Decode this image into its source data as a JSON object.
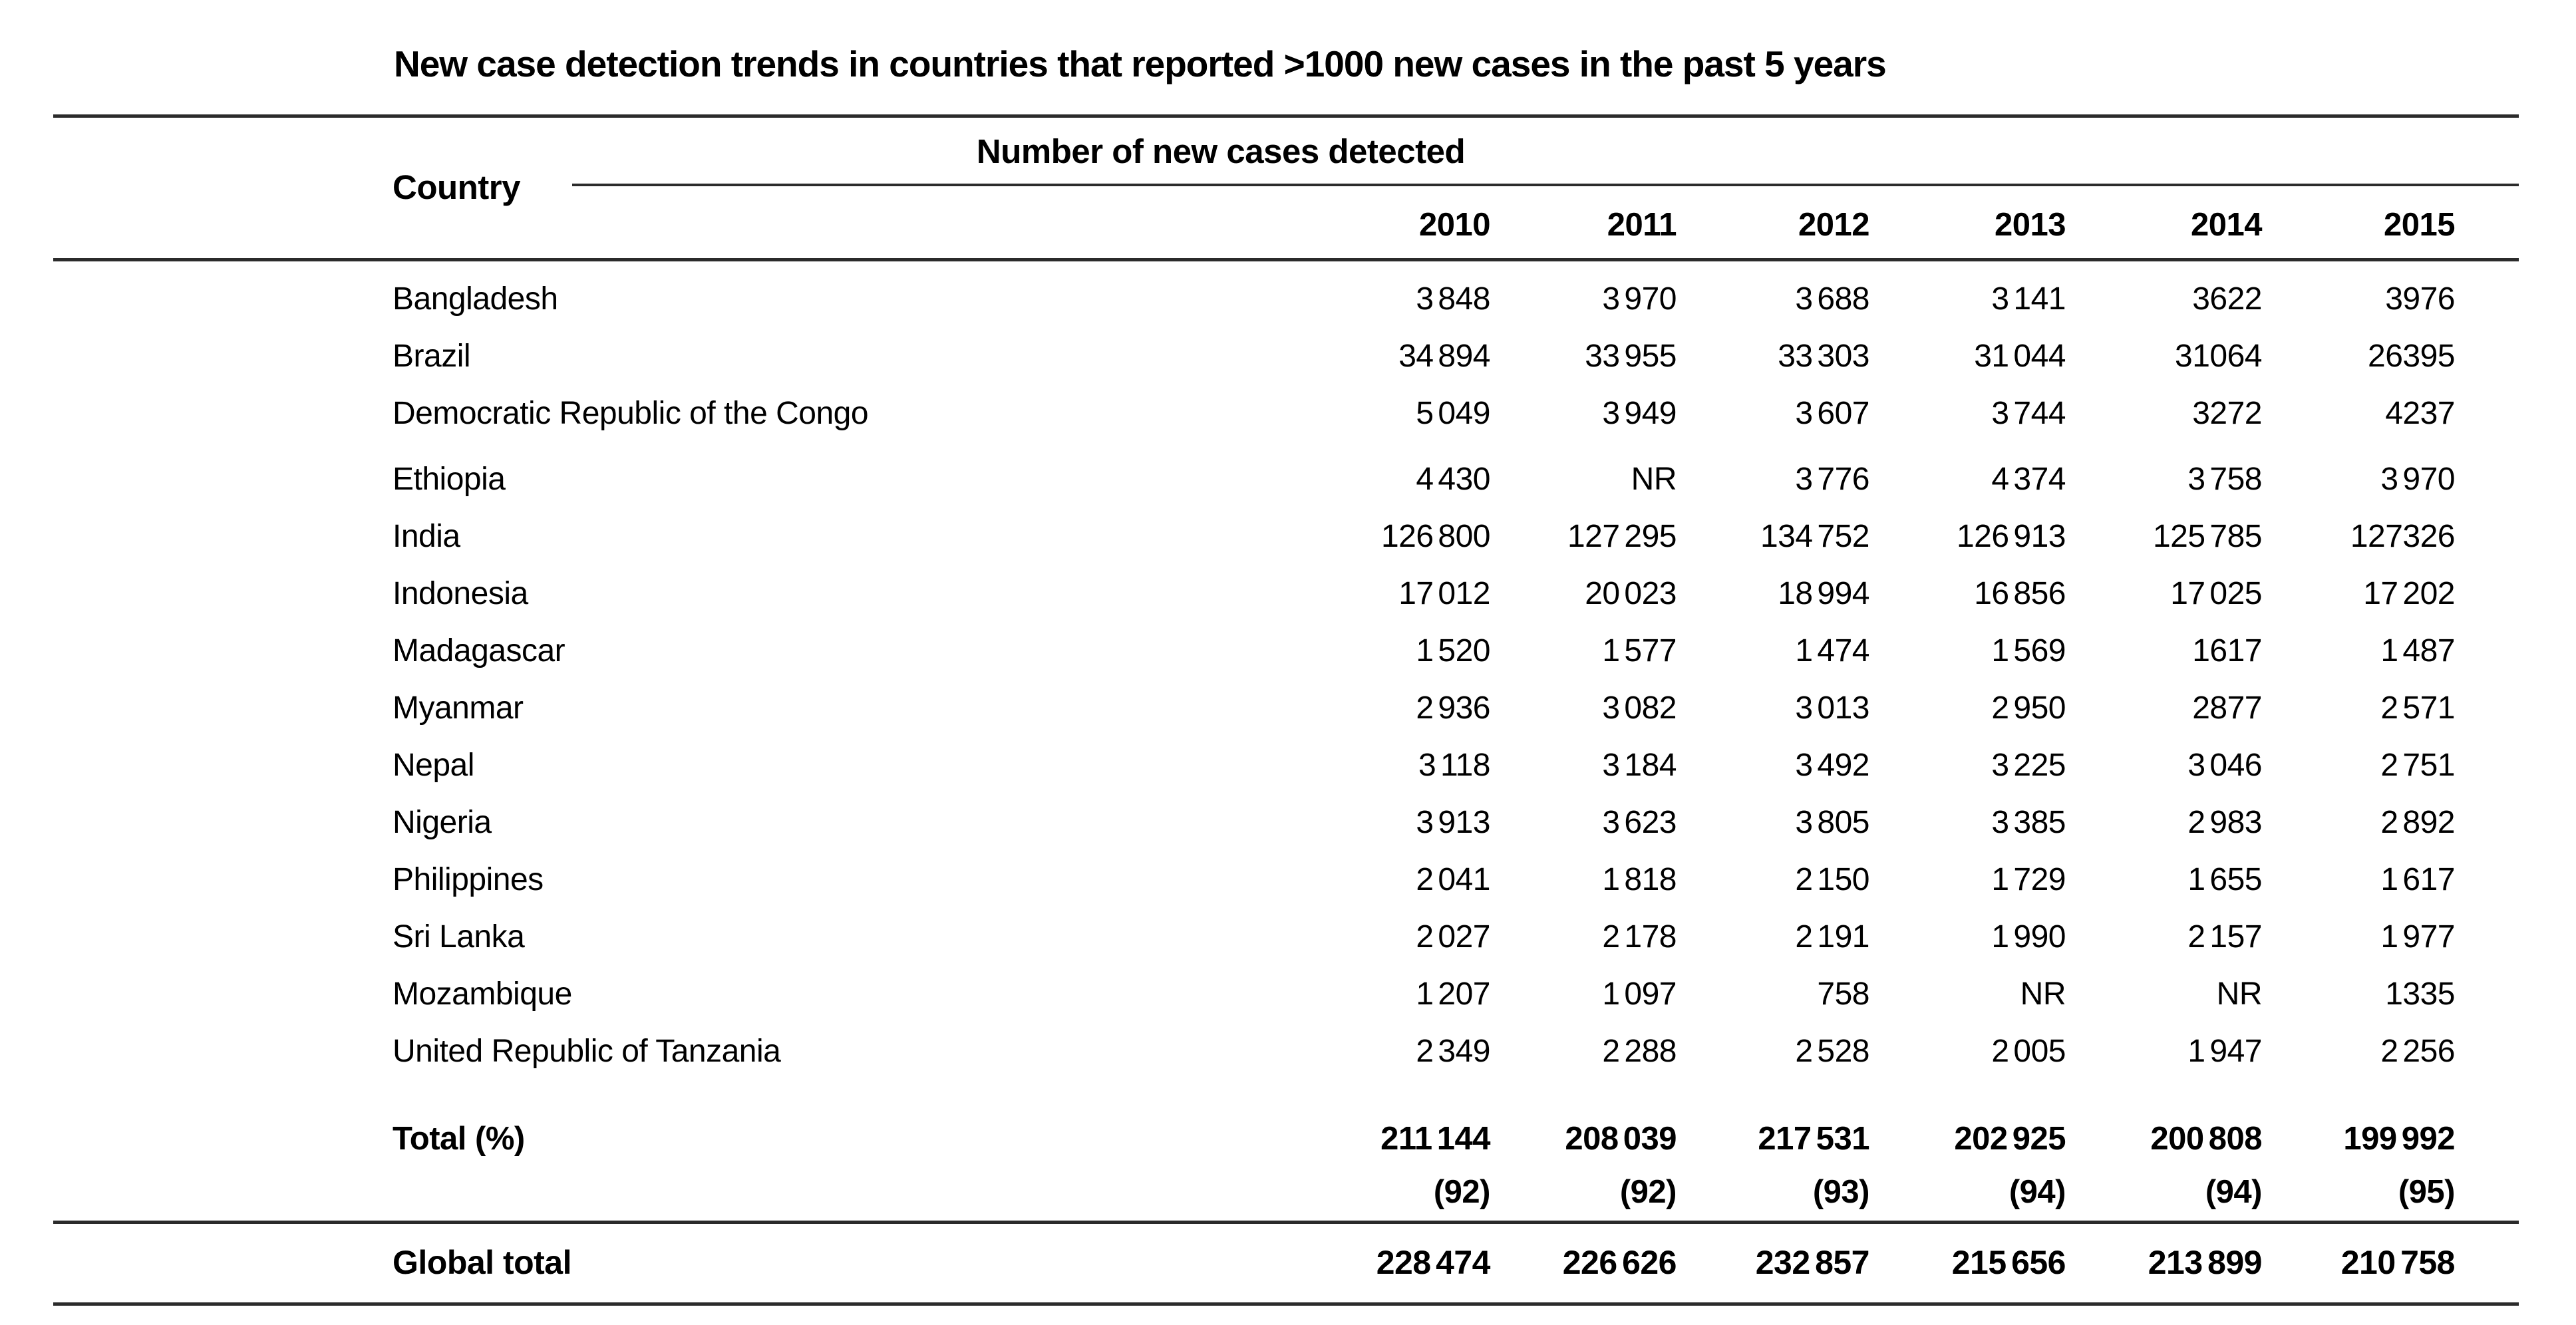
{
  "title": "New case detection trends in countries that reported >1000 new cases in the past 5 years",
  "table": {
    "country_header": "Country",
    "group_header": "Number of new cases detected",
    "years": [
      "2010",
      "2011",
      "2012",
      "2013",
      "2014",
      "2015"
    ],
    "rows": [
      {
        "country": "Bangladesh",
        "values": [
          "3 848",
          "3 970",
          "3 688",
          "3 141",
          "3622",
          "3976"
        ]
      },
      {
        "country": "Brazil",
        "values": [
          "34 894",
          "33 955",
          "33 303",
          "31 044",
          "31064",
          "26395"
        ]
      },
      {
        "country": "Democratic Republic of the Congo",
        "values": [
          "5 049",
          "3 949",
          "3 607",
          "3 744",
          "3272",
          "4237"
        ]
      },
      {
        "country": "Ethiopia",
        "values": [
          "4 430",
          "NR",
          "3 776",
          "4 374",
          "3 758",
          "3 970"
        ],
        "spacer_before": true
      },
      {
        "country": "India",
        "values": [
          "126 800",
          "127 295",
          "134 752",
          "126 913",
          "125 785",
          "127326"
        ]
      },
      {
        "country": "Indonesia",
        "values": [
          "17 012",
          "20 023",
          "18 994",
          "16 856",
          "17 025",
          "17 202"
        ]
      },
      {
        "country": "Madagascar",
        "values": [
          "1 520",
          "1 577",
          "1 474",
          "1 569",
          "1617",
          "1 487"
        ]
      },
      {
        "country": "Myanmar",
        "values": [
          "2 936",
          "3 082",
          "3 013",
          "2 950",
          "2877",
          "2 571"
        ]
      },
      {
        "country": "Nepal",
        "values": [
          "3 118",
          "3 184",
          "3 492",
          "3 225",
          "3 046",
          "2 751"
        ]
      },
      {
        "country": "Nigeria",
        "values": [
          "3 913",
          "3 623",
          "3 805",
          "3 385",
          "2 983",
          "2 892"
        ]
      },
      {
        "country": "Philippines",
        "values": [
          "2 041",
          "1 818",
          "2 150",
          "1 729",
          "1 655",
          "1 617"
        ]
      },
      {
        "country": "Sri Lanka",
        "values": [
          "2 027",
          "2 178",
          "2 191",
          "1 990",
          "2 157",
          "1 977"
        ]
      },
      {
        "country": "Mozambique",
        "values": [
          "1 207",
          "1 097",
          "758",
          "NR",
          "NR",
          "1335"
        ]
      },
      {
        "country": "United Republic of Tanzania",
        "values": [
          "2 349",
          "2 288",
          "2 528",
          "2 005",
          "1 947",
          "2 256"
        ]
      }
    ],
    "total_row": {
      "label": "Total (%)",
      "values": [
        "211 144",
        "208 039",
        "217 531",
        "202 925",
        "200 808",
        "199 992"
      ]
    },
    "percent_row": {
      "values": [
        "(92)",
        "(92)",
        "(93)",
        "(94)",
        "(94)",
        "(95)"
      ]
    },
    "global_row": {
      "label": "Global total",
      "values": [
        "228 474",
        "226 626",
        "232 857",
        "215 656",
        "213 899",
        "210 758"
      ]
    }
  }
}
